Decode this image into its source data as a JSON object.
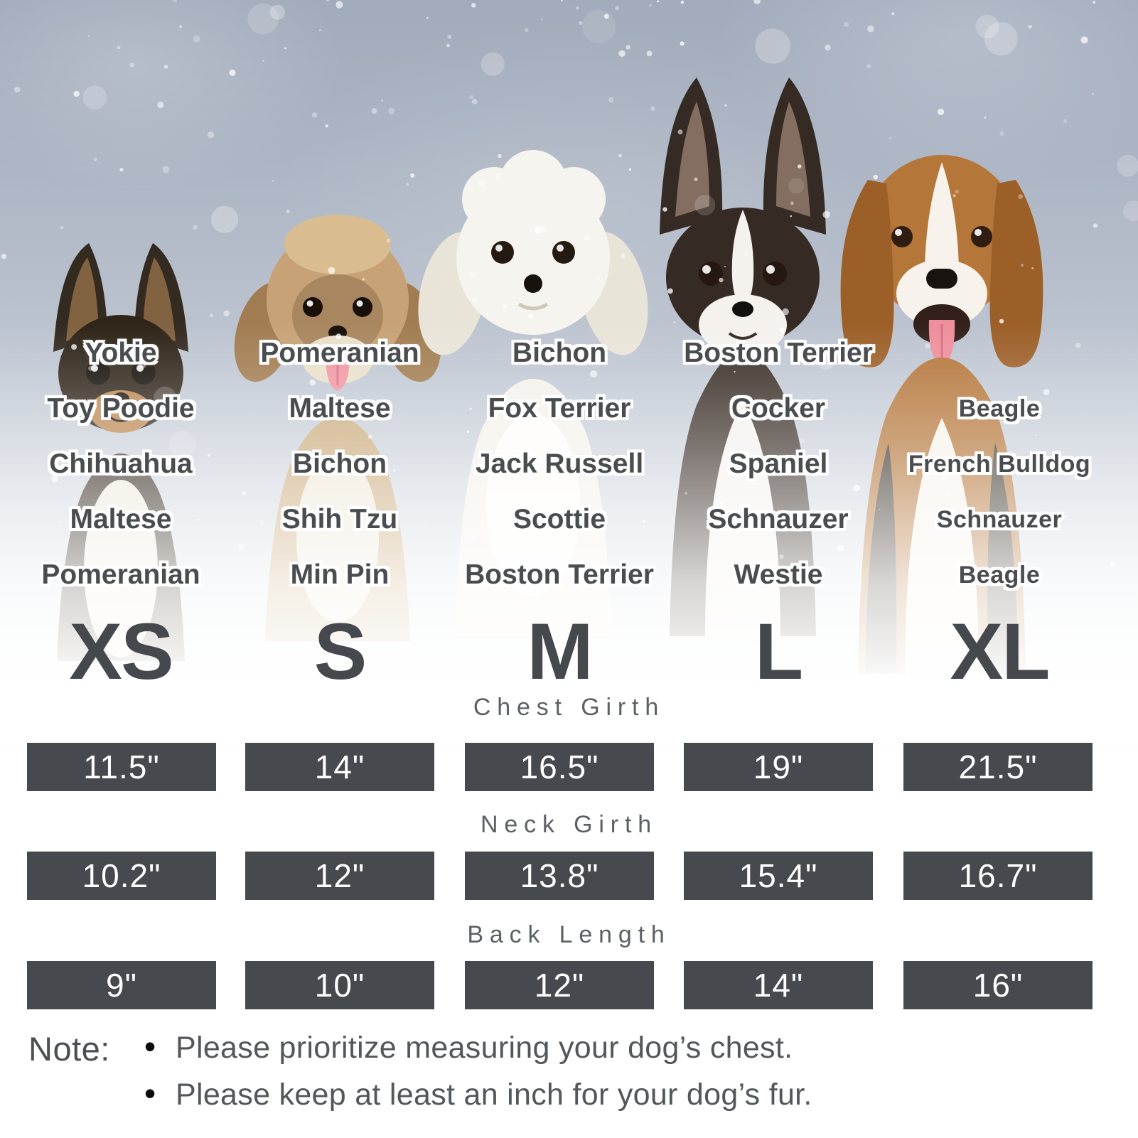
{
  "chart": {
    "columns": [
      {
        "size": "XS",
        "breeds": [
          "Yokie",
          "Toy Poodie",
          "Chihuahua",
          "Maltese",
          "Pomeranian"
        ]
      },
      {
        "size": "S",
        "breeds": [
          "Pomeranian",
          "Maltese",
          "Bichon",
          "Shih Tzu",
          "Min Pin"
        ]
      },
      {
        "size": "M",
        "breeds": [
          "Bichon",
          "Fox Terrier",
          "Jack Russell",
          "Scottie",
          "Boston Terrier"
        ]
      },
      {
        "size": "L",
        "breeds": [
          "Boston Terrier",
          "Cocker",
          "Spaniel",
          "Schnauzer",
          "Westie"
        ]
      },
      {
        "size": "XL",
        "breeds": [
          "",
          "Beagle",
          "French Bulldog",
          "Schnauzer",
          "Beagle"
        ]
      }
    ],
    "measurements": [
      {
        "label": "Chest Girth",
        "values": [
          "11.5\"",
          "14\"",
          "16.5\"",
          "19\"",
          "21.5\""
        ]
      },
      {
        "label": "Neck Girth",
        "values": [
          "10.2\"",
          "12\"",
          "13.8\"",
          "15.4\"",
          "16.7\""
        ]
      },
      {
        "label": "Back Length",
        "values": [
          "9\"",
          "10\"",
          "12\"",
          "14\"",
          "16\""
        ]
      }
    ]
  },
  "note": {
    "label": "Note:",
    "bullets": [
      "Please prioritize measuring your dog’s chest.",
      "Please keep at least an inch for your dog’s fur."
    ]
  },
  "dog_illustrations": [
    "chihuahua",
    "shih-tzu",
    "maltese",
    "boston-terrier",
    "beagle"
  ],
  "colors": {
    "bar_fill": "#46494e",
    "size_letter": "#45484c",
    "breed_text": "#4a4d4f",
    "section_label": "#5d6063",
    "note_text": "#53565a",
    "background_top": "#a2abbb"
  }
}
